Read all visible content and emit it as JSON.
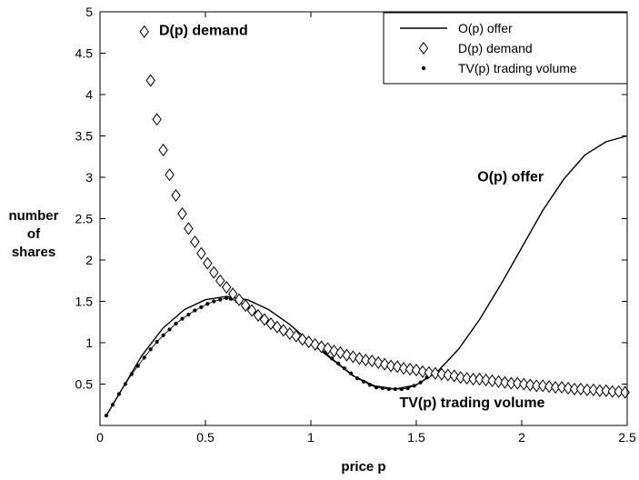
{
  "chart_data": {
    "type": "line",
    "title": "",
    "xlabel": "price p",
    "ylabel_lines": [
      "number",
      "of",
      "shares"
    ],
    "xlim": [
      0,
      2.5
    ],
    "ylim": [
      0,
      5
    ],
    "x_ticks": [
      0,
      0.5,
      1,
      1.5,
      2,
      2.5
    ],
    "x_tick_labels": [
      "0",
      "0.5",
      "1",
      "1.5",
      "2",
      "2.5"
    ],
    "y_ticks": [
      0.5,
      1,
      1.5,
      2,
      2.5,
      3,
      3.5,
      4,
      4.5,
      5
    ],
    "y_tick_labels": [
      "0.5",
      "1",
      "1.5",
      "2",
      "2.5",
      "3",
      "3.5",
      "4",
      "4.5",
      "5"
    ],
    "grid": false,
    "legend_position": "top-right",
    "series": [
      {
        "name": "O(p) offer",
        "marker": "solid-line",
        "x": [
          0.03,
          0.1,
          0.2,
          0.3,
          0.4,
          0.5,
          0.6,
          0.7,
          0.8,
          0.9,
          1.0,
          1.1,
          1.2,
          1.3,
          1.4,
          1.5,
          1.6,
          1.7,
          1.8,
          1.9,
          2.0,
          2.1,
          2.2,
          2.3,
          2.4,
          2.5
        ],
        "y": [
          0.12,
          0.42,
          0.85,
          1.18,
          1.4,
          1.52,
          1.56,
          1.52,
          1.4,
          1.22,
          1.0,
          0.8,
          0.6,
          0.48,
          0.44,
          0.49,
          0.65,
          0.92,
          1.28,
          1.7,
          2.15,
          2.6,
          2.98,
          3.27,
          3.43,
          3.5
        ]
      },
      {
        "name": "D(p) demand",
        "marker": "diamond",
        "x": [
          0.21,
          0.24,
          0.27,
          0.3,
          0.33,
          0.36,
          0.39,
          0.42,
          0.45,
          0.48,
          0.51,
          0.54,
          0.57,
          0.6,
          0.63,
          0.66,
          0.69,
          0.72,
          0.75,
          0.78,
          0.81,
          0.84,
          0.87,
          0.9,
          0.93,
          0.96,
          0.99,
          1.02,
          1.05,
          1.08,
          1.11,
          1.14,
          1.17,
          1.2,
          1.23,
          1.26,
          1.29,
          1.32,
          1.35,
          1.38,
          1.41,
          1.44,
          1.47,
          1.5,
          1.53,
          1.56,
          1.59,
          1.62,
          1.65,
          1.68,
          1.71,
          1.74,
          1.77,
          1.8,
          1.83,
          1.86,
          1.89,
          1.92,
          1.95,
          1.98,
          2.01,
          2.04,
          2.07,
          2.1,
          2.13,
          2.16,
          2.19,
          2.22,
          2.25,
          2.28,
          2.31,
          2.34,
          2.37,
          2.4,
          2.43,
          2.46,
          2.49
        ],
        "y": [
          4.76,
          4.17,
          3.7,
          3.33,
          3.03,
          2.78,
          2.56,
          2.38,
          2.22,
          2.08,
          1.96,
          1.85,
          1.75,
          1.67,
          1.59,
          1.52,
          1.45,
          1.39,
          1.33,
          1.28,
          1.23,
          1.19,
          1.15,
          1.11,
          1.08,
          1.04,
          1.01,
          0.98,
          0.95,
          0.93,
          0.9,
          0.88,
          0.85,
          0.83,
          0.81,
          0.79,
          0.78,
          0.76,
          0.74,
          0.72,
          0.71,
          0.69,
          0.68,
          0.67,
          0.65,
          0.64,
          0.63,
          0.62,
          0.61,
          0.6,
          0.58,
          0.57,
          0.56,
          0.56,
          0.55,
          0.54,
          0.53,
          0.52,
          0.51,
          0.51,
          0.5,
          0.49,
          0.48,
          0.48,
          0.47,
          0.46,
          0.46,
          0.45,
          0.44,
          0.44,
          0.43,
          0.43,
          0.42,
          0.42,
          0.41,
          0.41,
          0.4
        ]
      },
      {
        "name": "TV(p) trading volume",
        "marker": "dot",
        "x": [
          0.03,
          0.06,
          0.09,
          0.12,
          0.15,
          0.18,
          0.21,
          0.24,
          0.27,
          0.3,
          0.33,
          0.36,
          0.39,
          0.42,
          0.45,
          0.48,
          0.51,
          0.54,
          0.57,
          0.6,
          0.62,
          0.65,
          0.68,
          0.71,
          0.74,
          0.77,
          0.8,
          0.83,
          0.86,
          0.89,
          0.92,
          0.95,
          0.98,
          1.01,
          1.04,
          1.07,
          1.1,
          1.13,
          1.16,
          1.19,
          1.22,
          1.25,
          1.28,
          1.31,
          1.34,
          1.37,
          1.4,
          1.43,
          1.46,
          1.49,
          1.52,
          1.55,
          1.58,
          1.61,
          1.64,
          1.67,
          1.7,
          1.73,
          1.76,
          1.79,
          1.82,
          1.85,
          1.88,
          1.91,
          1.94,
          1.97,
          2.0,
          2.03,
          2.06,
          2.09,
          2.12,
          2.15,
          2.18,
          2.21,
          2.24,
          2.27,
          2.3,
          2.33,
          2.36,
          2.39,
          2.42,
          2.45,
          2.48
        ],
        "y": [
          0.12,
          0.25,
          0.38,
          0.5,
          0.62,
          0.72,
          0.82,
          0.92,
          1.01,
          1.09,
          1.16,
          1.23,
          1.29,
          1.34,
          1.39,
          1.43,
          1.47,
          1.5,
          1.52,
          1.54,
          1.53,
          1.5,
          1.46,
          1.41,
          1.36,
          1.31,
          1.26,
          1.22,
          1.17,
          1.13,
          1.09,
          1.05,
          1.02,
          0.99,
          0.94,
          0.88,
          0.81,
          0.75,
          0.69,
          0.63,
          0.57,
          0.53,
          0.49,
          0.46,
          0.45,
          0.44,
          0.44,
          0.44,
          0.45,
          0.48,
          0.52,
          0.58,
          0.62,
          0.62,
          0.61,
          0.6,
          0.58,
          0.57,
          0.56,
          0.56,
          0.55,
          0.54,
          0.53,
          0.52,
          0.51,
          0.51,
          0.5,
          0.49,
          0.48,
          0.48,
          0.47,
          0.46,
          0.46,
          0.45,
          0.44,
          0.44,
          0.43,
          0.43,
          0.42,
          0.42,
          0.41,
          0.41,
          0.4
        ]
      }
    ],
    "annotations": [
      {
        "text": "D(p) demand",
        "x": 0.28,
        "y": 4.72
      },
      {
        "text": "O(p) offer",
        "x": 1.79,
        "y": 2.95
      },
      {
        "text": "TV(p) trading volume",
        "x": 1.42,
        "y": 0.22
      }
    ]
  }
}
